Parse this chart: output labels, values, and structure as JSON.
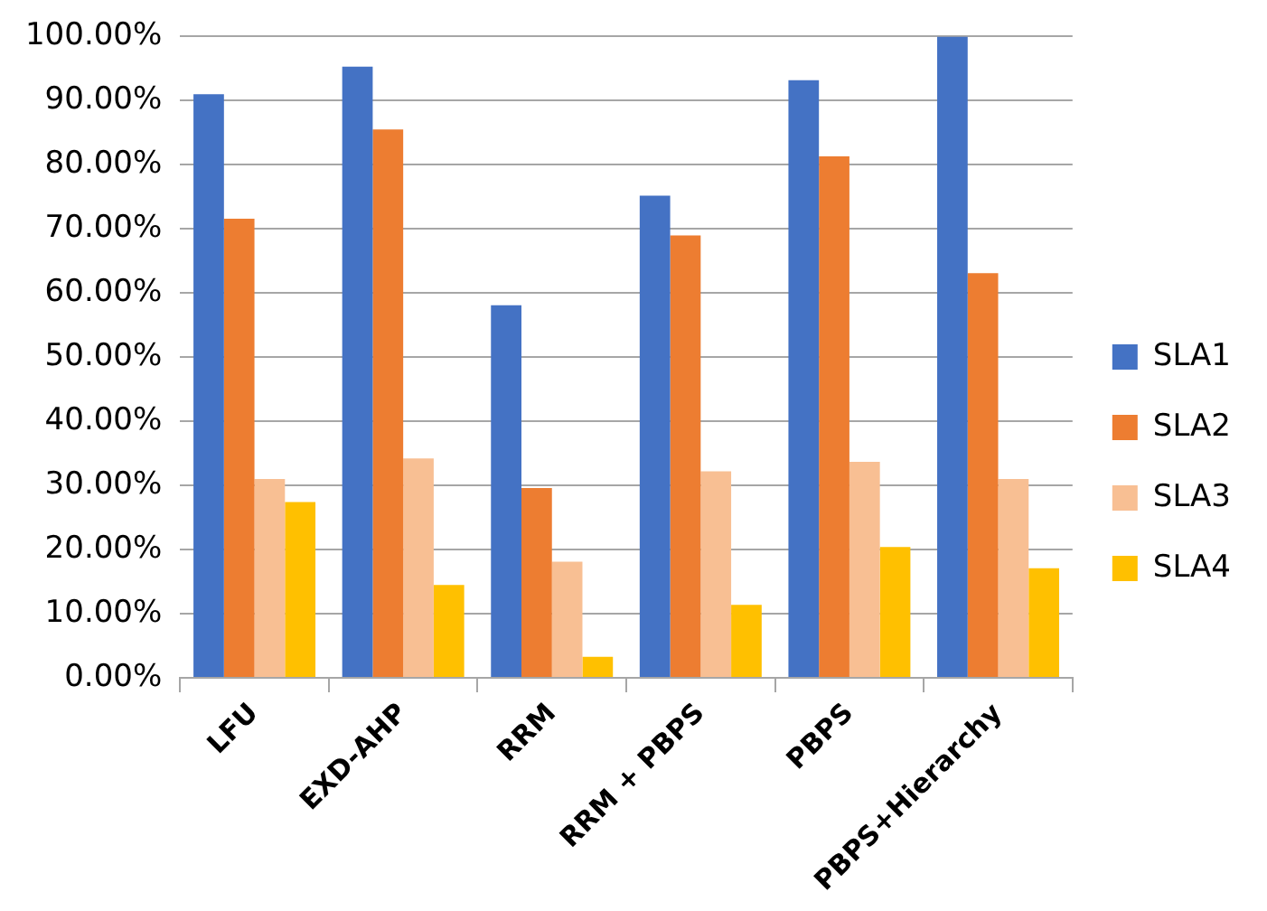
{
  "chart_data": {
    "type": "bar",
    "categories": [
      "LFU",
      "EXD-AHP",
      "RRM",
      "RRM + PBPS",
      "PBPS",
      "PBPS+Hierarchy"
    ],
    "series": [
      {
        "name": "SLA1",
        "color": "#4472c4",
        "values": [
          91.0,
          95.3,
          58.1,
          75.2,
          93.2,
          100
        ]
      },
      {
        "name": "SLA2",
        "color": "#ed7d31",
        "values": [
          71.6,
          85.5,
          29.6,
          69.0,
          81.3,
          63.1
        ]
      },
      {
        "name": "SLA3",
        "color": "#f8bf93",
        "values": [
          31.0,
          34.2,
          18.1,
          32.2,
          33.7,
          31.0
        ]
      },
      {
        "name": "SLA4",
        "color": "#ffc000",
        "values": [
          27.4,
          14.5,
          3.3,
          11.4,
          20.4,
          17.1
        ]
      }
    ],
    "ylim": [
      0,
      100
    ],
    "yticks": [
      {
        "value": 0,
        "label": "0.00%"
      },
      {
        "value": 10,
        "label": "10.00%"
      },
      {
        "value": 20,
        "label": "20.00%"
      },
      {
        "value": 30,
        "label": "30.00%"
      },
      {
        "value": 40,
        "label": "40.00%"
      },
      {
        "value": 50,
        "label": "50.00%"
      },
      {
        "value": 60,
        "label": "60.00%"
      },
      {
        "value": 70,
        "label": "70.00%"
      },
      {
        "value": 80,
        "label": "80.00%"
      },
      {
        "value": 90,
        "label": "90.00%"
      },
      {
        "value": 100,
        "label": "100.00%"
      }
    ],
    "grid": "y",
    "legend": "right"
  }
}
